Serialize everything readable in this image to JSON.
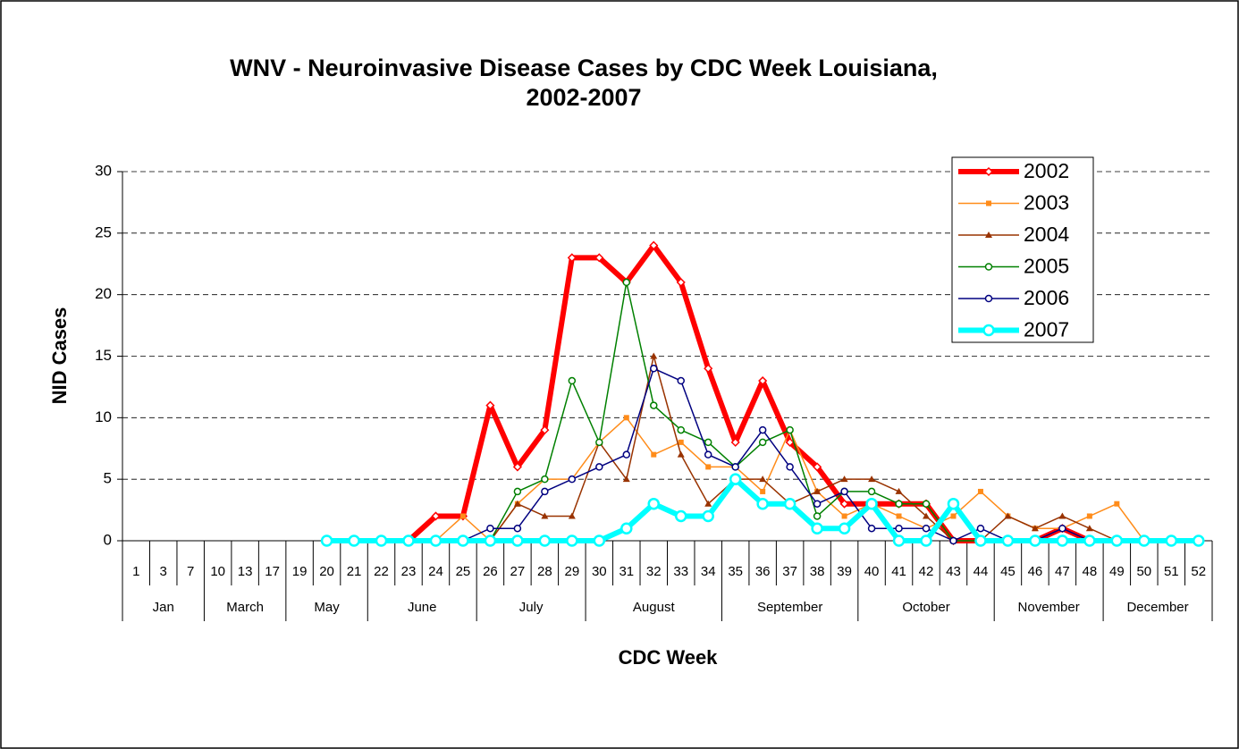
{
  "chart_data": {
    "type": "line",
    "title": [
      "WNV - Neuroinvasive Disease Cases by CDC Week  Louisiana,",
      "2002-2007"
    ],
    "x_label": "CDC Week",
    "y_label": "NID Cases",
    "categories": [
      "1",
      "3",
      "7",
      "10",
      "13",
      "17",
      "19",
      "20",
      "21",
      "22",
      "23",
      "24",
      "25",
      "26",
      "27",
      "28",
      "29",
      "30",
      "31",
      "32",
      "33",
      "34",
      "35",
      "36",
      "37",
      "38",
      "39",
      "40",
      "41",
      "42",
      "43",
      "44",
      "45",
      "46",
      "47",
      "48",
      "49",
      "50",
      "51",
      "52"
    ],
    "groups": [
      {
        "label": "Jan",
        "span": 3
      },
      {
        "label": "March",
        "span": 3
      },
      {
        "label": "May",
        "span": 3
      },
      {
        "label": "June",
        "span": 4
      },
      {
        "label": "July",
        "span": 4
      },
      {
        "label": "August",
        "span": 5
      },
      {
        "label": "September",
        "span": 5
      },
      {
        "label": "October",
        "span": 5
      },
      {
        "label": "November",
        "span": 4
      },
      {
        "label": "December",
        "span": 4
      }
    ],
    "ylim": [
      0,
      30
    ],
    "yticks": [
      0,
      5,
      10,
      15,
      20,
      25,
      30
    ],
    "grid": true,
    "legend": "upper right",
    "series": [
      {
        "name": "2002",
        "color": "#ff0000",
        "marker": "diamond",
        "line_width": 6,
        "values": [
          null,
          null,
          null,
          null,
          null,
          null,
          null,
          0,
          0,
          0,
          0,
          2,
          2,
          11,
          6,
          9,
          23,
          23,
          21,
          24,
          21,
          14,
          8,
          13,
          8,
          6,
          3,
          3,
          3,
          3,
          0,
          0,
          0,
          0,
          1,
          0,
          0,
          0,
          0,
          0
        ]
      },
      {
        "name": "2003",
        "color": "#ff8c1a",
        "marker": "square",
        "line_width": 1.5,
        "values": [
          null,
          null,
          null,
          null,
          null,
          null,
          null,
          0,
          0,
          0,
          0,
          0,
          2,
          0,
          3,
          5,
          5,
          8,
          10,
          7,
          8,
          6,
          6,
          4,
          9,
          4,
          2,
          3,
          2,
          1,
          2,
          4,
          2,
          1,
          1,
          2,
          3,
          0,
          0,
          0
        ]
      },
      {
        "name": "2004",
        "color": "#993300",
        "marker": "triangle",
        "line_width": 1.5,
        "values": [
          null,
          null,
          null,
          null,
          null,
          null,
          null,
          0,
          0,
          0,
          0,
          0,
          0,
          0,
          3,
          2,
          2,
          8,
          5,
          15,
          7,
          3,
          5,
          5,
          3,
          4,
          5,
          5,
          4,
          2,
          0,
          0,
          2,
          1,
          2,
          1,
          0,
          0,
          0,
          0
        ]
      },
      {
        "name": "2005",
        "color": "#008000",
        "marker": "circle",
        "line_width": 1.5,
        "values": [
          null,
          null,
          null,
          null,
          null,
          null,
          null,
          0,
          0,
          0,
          0,
          0,
          0,
          0,
          4,
          5,
          13,
          8,
          21,
          11,
          9,
          8,
          6,
          8,
          9,
          2,
          4,
          4,
          3,
          3,
          0,
          0,
          0,
          0,
          0,
          0,
          0,
          0,
          0,
          0
        ]
      },
      {
        "name": "2006",
        "color": "#000080",
        "marker": "circle",
        "line_width": 1.5,
        "values": [
          null,
          null,
          null,
          null,
          null,
          null,
          null,
          0,
          0,
          0,
          0,
          0,
          0,
          1,
          1,
          4,
          5,
          6,
          7,
          14,
          13,
          7,
          6,
          9,
          6,
          3,
          4,
          1,
          1,
          1,
          0,
          1,
          0,
          0,
          1,
          0,
          0,
          0,
          0,
          0
        ]
      },
      {
        "name": "2007",
        "color": "#00ffff",
        "marker": "bigcircle",
        "line_width": 6,
        "values": [
          null,
          null,
          null,
          null,
          null,
          null,
          null,
          0,
          0,
          0,
          0,
          0,
          0,
          0,
          0,
          0,
          0,
          0,
          1,
          3,
          2,
          2,
          5,
          3,
          3,
          1,
          1,
          3,
          0,
          0,
          3,
          0,
          0,
          0,
          0,
          0,
          0,
          0,
          0,
          0
        ]
      }
    ]
  }
}
